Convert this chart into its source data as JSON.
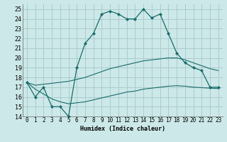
{
  "xlabel": "Humidex (Indice chaleur)",
  "bg_color": "#cce8e8",
  "grid_color": "#aacccc",
  "line_color": "#1a6b6b",
  "xlim": [
    -0.5,
    23.5
  ],
  "ylim": [
    14,
    25.5
  ],
  "yticks": [
    14,
    15,
    16,
    17,
    18,
    19,
    20,
    21,
    22,
    23,
    24,
    25
  ],
  "xticks": [
    0,
    1,
    2,
    3,
    4,
    5,
    6,
    7,
    8,
    9,
    10,
    11,
    12,
    13,
    14,
    15,
    16,
    17,
    18,
    19,
    20,
    21,
    22,
    23
  ],
  "main_line_x": [
    0,
    1,
    2,
    3,
    4,
    5,
    6,
    7,
    8,
    9,
    10,
    11,
    12,
    13,
    14,
    15,
    16,
    17,
    18,
    19,
    20,
    21,
    22,
    23
  ],
  "main_line_y": [
    17.5,
    16.0,
    17.0,
    15.0,
    15.0,
    14.0,
    19.0,
    21.5,
    22.5,
    24.5,
    24.8,
    24.5,
    24.0,
    24.0,
    25.0,
    24.1,
    24.5,
    22.5,
    20.5,
    19.5,
    19.0,
    18.7,
    17.0,
    17.0
  ],
  "upper_line_x": [
    0,
    1,
    2,
    3,
    4,
    5,
    6,
    7,
    8,
    9,
    10,
    11,
    12,
    13,
    14,
    15,
    16,
    17,
    18,
    19,
    20,
    21,
    22,
    23
  ],
  "upper_line_y": [
    17.5,
    17.2,
    17.3,
    17.4,
    17.5,
    17.6,
    17.8,
    18.0,
    18.3,
    18.6,
    18.9,
    19.1,
    19.3,
    19.5,
    19.7,
    19.8,
    19.9,
    20.0,
    20.0,
    19.8,
    19.5,
    19.2,
    18.9,
    18.7
  ],
  "lower_line_x": [
    0,
    1,
    2,
    3,
    4,
    5,
    6,
    7,
    8,
    9,
    10,
    11,
    12,
    13,
    14,
    15,
    16,
    17,
    18,
    19,
    20,
    21,
    22,
    23
  ],
  "lower_line_y": [
    17.5,
    16.8,
    16.3,
    15.8,
    15.5,
    15.3,
    15.4,
    15.5,
    15.7,
    15.9,
    16.1,
    16.3,
    16.5,
    16.6,
    16.8,
    16.9,
    17.0,
    17.1,
    17.15,
    17.1,
    17.0,
    16.95,
    16.9,
    16.85
  ]
}
